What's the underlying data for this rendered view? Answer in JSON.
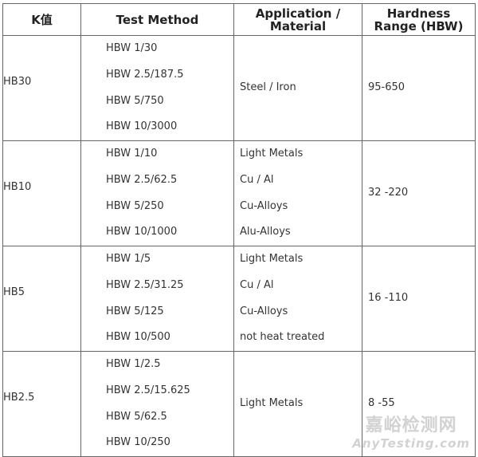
{
  "header": {
    "k": "K值",
    "method": "Test  Method",
    "application": "Application  /\nMaterial",
    "app_line1": "Application  /",
    "app_line2": "Material",
    "hard_line1": "Hardness",
    "hard_line2": "Range (HBW)"
  },
  "rows": [
    {
      "k": "HB30",
      "methods": [
        "HBW 1/30",
        "HBW 2.5/187.5",
        "HBW 5/750",
        "HBW 10/3000"
      ],
      "applications": [
        "Steel  / Iron"
      ],
      "range": "95-650"
    },
    {
      "k": "HB10",
      "methods": [
        "HBW 1/10",
        "HBW 2.5/62.5",
        "HBW 5/250",
        "HBW 10/1000"
      ],
      "applications": [
        "Light  Metals",
        "Cu  / Al",
        "Cu-Alloys",
        "Alu-Alloys"
      ],
      "range": "32 -220"
    },
    {
      "k": "HB5",
      "methods": [
        "HBW 1/5",
        "HBW 2.5/31.25",
        "HBW 5/125",
        "HBW 10/500"
      ],
      "applications": [
        "Light  Metals",
        "Cu  / Al",
        "Cu-Alloys",
        "not  heat treated"
      ],
      "range": "16 -110"
    },
    {
      "k": "HB2.5",
      "methods": [
        "HBW 1/2.5",
        "HBW 2.5/15.625",
        "HBW 5/62.5",
        "HBW 10/250"
      ],
      "applications": [
        "Light  Metals"
      ],
      "range": "8 -55"
    }
  ],
  "watermark": {
    "cn": "嘉峪检测网",
    "en": "AnyTesting.com"
  }
}
